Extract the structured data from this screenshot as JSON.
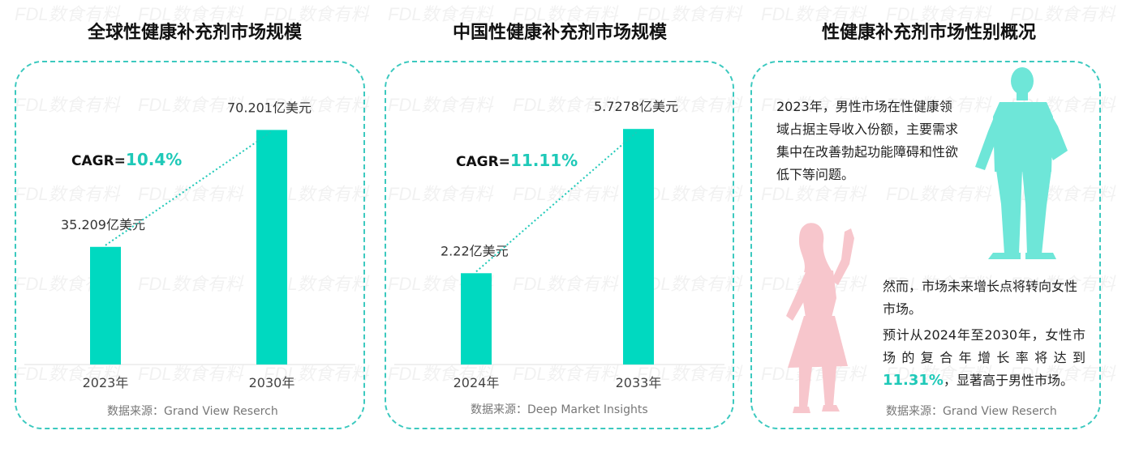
{
  "watermark_text": "FDL数食有料",
  "panels": [
    {
      "title": "全球性健康补充剂市场规模",
      "cagr_label": "CAGR=",
      "cagr_value": "10.4%",
      "source": "数据来源：Grand View Reserch"
    },
    {
      "title": "中国性健康补充剂市场规模",
      "cagr_label": "CAGR=",
      "cagr_value": "11.11%",
      "source": "数据来源：Deep Market Insights"
    },
    {
      "title": "性健康补充剂市场性别概况",
      "male_text": "2023年，男性市场在性健康领域占据主导收入份额，主要需求集中在改善勃起功能障碍和性欲低下等问题。",
      "female_text_1": "然而，市场未来增长点将转向女性市场。",
      "female_text_2a": "预计从2024年至2030年，女性市场的复合年增长率将达到",
      "female_highlight": "11.31%",
      "female_text_2b": "，显著高于男性市场。",
      "source": "数据来源：Grand View Reserch"
    }
  ],
  "colors": {
    "accent": "#1fc9b8",
    "bar": "#00d9c0",
    "card_border": "#3cc9bf",
    "male_figure": "#6ee6d8",
    "female_figure": "#f7c6cc"
  },
  "chart_data": [
    {
      "type": "bar",
      "categories": [
        "2023年",
        "2030年"
      ],
      "values": [
        35.209,
        70.201
      ],
      "value_labels": [
        "35.209亿美元",
        "70.201亿美元"
      ],
      "unit": "亿美元",
      "ylim": [
        0,
        80
      ]
    },
    {
      "type": "bar",
      "categories": [
        "2024年",
        "2033年"
      ],
      "values": [
        2.22,
        5.7278
      ],
      "value_labels": [
        "2.22亿美元",
        "5.7278亿美元"
      ],
      "unit": "亿美元",
      "ylim": [
        0,
        6.5
      ]
    }
  ]
}
